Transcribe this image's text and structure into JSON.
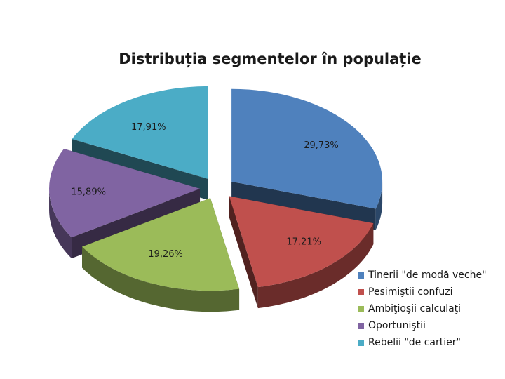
{
  "chart_data": {
    "type": "pie",
    "title": "Distribuția segmentelor în populație",
    "legend_position": "bottom-right",
    "style": "3d-exploded",
    "slices": [
      {
        "name": "Tinerii \"de modă veche\"",
        "value": 29.73,
        "label": "29,73%",
        "color": "#4f81bd"
      },
      {
        "name": "Pesimiştii confuzi",
        "value": 17.21,
        "label": "17,21%",
        "color": "#c0504d"
      },
      {
        "name": "Ambiţioşii calculaţi",
        "value": 19.26,
        "label": "19,26%",
        "color": "#9bbb59"
      },
      {
        "name": "Oportuniştii",
        "value": 15.89,
        "label": "15,89%",
        "color": "#8064a2"
      },
      {
        "name": "Rebelii \"de cartier\"",
        "value": 17.91,
        "label": "17,91%",
        "color": "#4bacc6"
      }
    ]
  }
}
